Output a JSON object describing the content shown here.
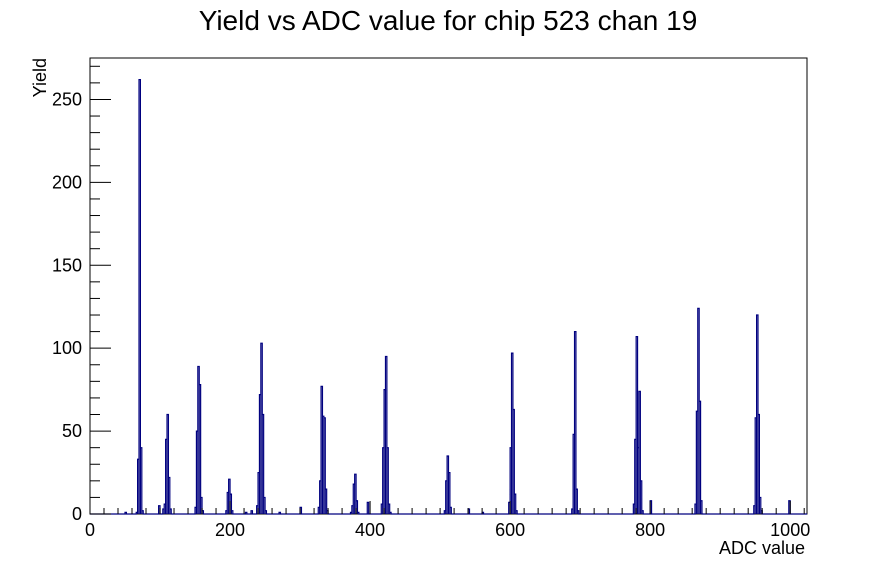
{
  "chart_data": {
    "type": "histogram",
    "title": "Yield vs ADC value for chip 523 chan 19",
    "xlabel": "ADC value",
    "ylabel": "Yield",
    "xlim": [
      0,
      1024
    ],
    "ylim": [
      0,
      275
    ],
    "x_ticks": [
      0,
      200,
      400,
      600,
      800,
      1000
    ],
    "y_ticks": [
      0,
      50,
      100,
      150,
      200,
      250
    ],
    "grid": false,
    "legend": "none",
    "line_color": "#00007f",
    "bin_width": 2,
    "bins": [
      {
        "x": 50,
        "y": 1
      },
      {
        "x": 66,
        "y": 1
      },
      {
        "x": 68,
        "y": 33
      },
      {
        "x": 70,
        "y": 262
      },
      {
        "x": 72,
        "y": 40
      },
      {
        "x": 74,
        "y": 2
      },
      {
        "x": 98,
        "y": 5
      },
      {
        "x": 104,
        "y": 3
      },
      {
        "x": 106,
        "y": 6
      },
      {
        "x": 108,
        "y": 45
      },
      {
        "x": 110,
        "y": 60
      },
      {
        "x": 112,
        "y": 22
      },
      {
        "x": 114,
        "y": 3
      },
      {
        "x": 150,
        "y": 4
      },
      {
        "x": 152,
        "y": 50
      },
      {
        "x": 154,
        "y": 89
      },
      {
        "x": 156,
        "y": 78
      },
      {
        "x": 158,
        "y": 10
      },
      {
        "x": 160,
        "y": 2
      },
      {
        "x": 194,
        "y": 2
      },
      {
        "x": 196,
        "y": 13
      },
      {
        "x": 198,
        "y": 21
      },
      {
        "x": 200,
        "y": 12
      },
      {
        "x": 202,
        "y": 2
      },
      {
        "x": 222,
        "y": 1
      },
      {
        "x": 230,
        "y": 2
      },
      {
        "x": 238,
        "y": 5
      },
      {
        "x": 240,
        "y": 25
      },
      {
        "x": 242,
        "y": 72
      },
      {
        "x": 244,
        "y": 103
      },
      {
        "x": 246,
        "y": 60
      },
      {
        "x": 248,
        "y": 10
      },
      {
        "x": 250,
        "y": 2
      },
      {
        "x": 270,
        "y": 1
      },
      {
        "x": 300,
        "y": 4
      },
      {
        "x": 326,
        "y": 4
      },
      {
        "x": 328,
        "y": 20
      },
      {
        "x": 330,
        "y": 77
      },
      {
        "x": 332,
        "y": 59
      },
      {
        "x": 334,
        "y": 58
      },
      {
        "x": 336,
        "y": 15
      },
      {
        "x": 338,
        "y": 2
      },
      {
        "x": 372,
        "y": 1
      },
      {
        "x": 374,
        "y": 5
      },
      {
        "x": 376,
        "y": 18
      },
      {
        "x": 378,
        "y": 24
      },
      {
        "x": 380,
        "y": 8
      },
      {
        "x": 382,
        "y": 1
      },
      {
        "x": 396,
        "y": 7
      },
      {
        "x": 416,
        "y": 6
      },
      {
        "x": 418,
        "y": 40
      },
      {
        "x": 420,
        "y": 75
      },
      {
        "x": 422,
        "y": 95
      },
      {
        "x": 424,
        "y": 40
      },
      {
        "x": 426,
        "y": 6
      },
      {
        "x": 428,
        "y": 1
      },
      {
        "x": 506,
        "y": 2
      },
      {
        "x": 508,
        "y": 20
      },
      {
        "x": 510,
        "y": 35
      },
      {
        "x": 512,
        "y": 25
      },
      {
        "x": 514,
        "y": 4
      },
      {
        "x": 540,
        "y": 3
      },
      {
        "x": 560,
        "y": 1
      },
      {
        "x": 598,
        "y": 7
      },
      {
        "x": 600,
        "y": 40
      },
      {
        "x": 602,
        "y": 97
      },
      {
        "x": 604,
        "y": 63
      },
      {
        "x": 606,
        "y": 12
      },
      {
        "x": 608,
        "y": 2
      },
      {
        "x": 688,
        "y": 3
      },
      {
        "x": 690,
        "y": 48
      },
      {
        "x": 692,
        "y": 110
      },
      {
        "x": 694,
        "y": 15
      },
      {
        "x": 696,
        "y": 2
      },
      {
        "x": 776,
        "y": 6
      },
      {
        "x": 778,
        "y": 45
      },
      {
        "x": 780,
        "y": 107
      },
      {
        "x": 782,
        "y": 40
      },
      {
        "x": 784,
        "y": 74
      },
      {
        "x": 786,
        "y": 20
      },
      {
        "x": 788,
        "y": 2
      },
      {
        "x": 800,
        "y": 8
      },
      {
        "x": 864,
        "y": 6
      },
      {
        "x": 866,
        "y": 62
      },
      {
        "x": 868,
        "y": 124
      },
      {
        "x": 870,
        "y": 68
      },
      {
        "x": 872,
        "y": 8
      },
      {
        "x": 948,
        "y": 5
      },
      {
        "x": 950,
        "y": 58
      },
      {
        "x": 952,
        "y": 120
      },
      {
        "x": 954,
        "y": 60
      },
      {
        "x": 956,
        "y": 10
      },
      {
        "x": 958,
        "y": 2
      },
      {
        "x": 998,
        "y": 8
      }
    ]
  }
}
